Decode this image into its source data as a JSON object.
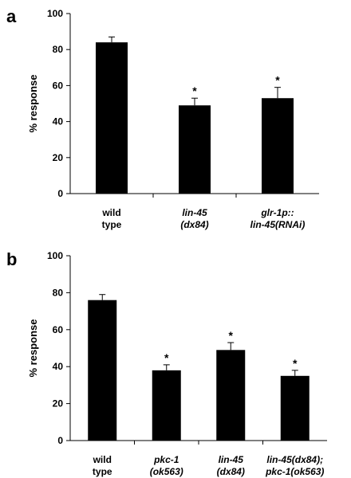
{
  "chart_data": [
    {
      "type": "bar",
      "panel_label": "a",
      "ylabel": "% response",
      "ylim": [
        0,
        100
      ],
      "yticks": [
        "0",
        "20",
        "40",
        "60",
        "80",
        "100"
      ],
      "categories": [
        {
          "lines": [
            "wild",
            "type"
          ],
          "italic": false
        },
        {
          "lines": [
            "lin-45",
            "(dx84)"
          ],
          "italic": true
        },
        {
          "lines": [
            "glr-1p::",
            "lin-45(RNAi)"
          ],
          "italic": true
        }
      ],
      "values": [
        84,
        49,
        53
      ],
      "errors": [
        3,
        4,
        6
      ],
      "significance": [
        "",
        "*",
        "*"
      ],
      "bar_color": "#000000",
      "grid": false
    },
    {
      "type": "bar",
      "panel_label": "b",
      "ylabel": "% response",
      "ylim": [
        0,
        100
      ],
      "yticks": [
        "0",
        "20",
        "40",
        "60",
        "80",
        "100"
      ],
      "categories": [
        {
          "lines": [
            "wild",
            "type"
          ],
          "italic": false
        },
        {
          "lines": [
            "pkc-1",
            "(ok563)"
          ],
          "italic": true
        },
        {
          "lines": [
            "lin-45",
            "(dx84)"
          ],
          "italic": true
        },
        {
          "lines": [
            "lin-45(dx84);",
            "pkc-1(ok563)"
          ],
          "italic": true
        }
      ],
      "values": [
        76,
        38,
        49,
        35
      ],
      "errors": [
        3,
        3,
        4,
        3
      ],
      "significance": [
        "",
        "*",
        "*",
        "*"
      ],
      "bar_color": "#000000",
      "grid": false
    }
  ]
}
